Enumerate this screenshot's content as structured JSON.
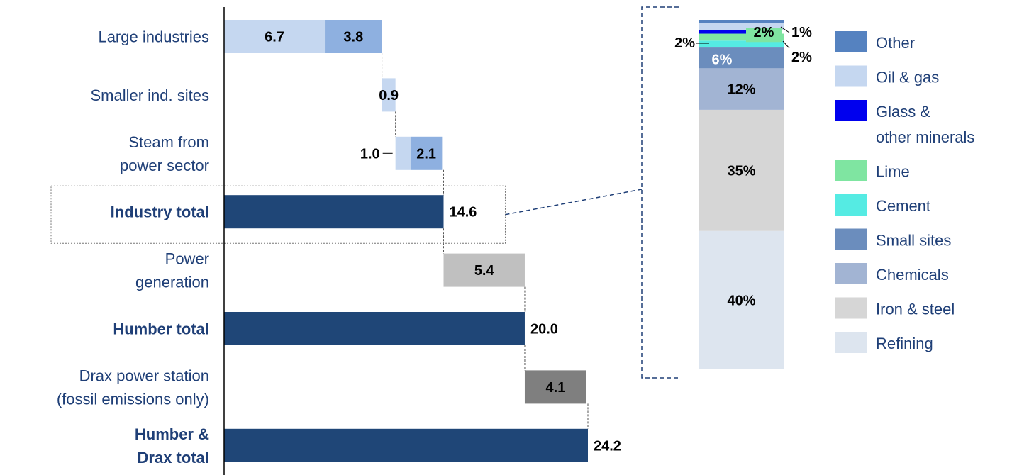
{
  "chart_data": {
    "type": "bar",
    "subtype": "waterfall-with-breakdown",
    "title": "",
    "xlabel": "",
    "ylabel": "",
    "waterfall": {
      "categories": [
        {
          "label_lines": [
            "Large industries"
          ],
          "bold": false
        },
        {
          "label_lines": [
            "Smaller ind. sites"
          ],
          "bold": false
        },
        {
          "label_lines": [
            "Steam from",
            "power sector"
          ],
          "bold": false
        },
        {
          "label_lines": [
            "Industry total"
          ],
          "bold": true
        },
        {
          "label_lines": [
            "Power",
            "generation"
          ],
          "bold": false
        },
        {
          "label_lines": [
            "Humber total"
          ],
          "bold": true
        },
        {
          "label_lines": [
            "Drax power station",
            "(fossil emissions only)"
          ],
          "bold": false
        },
        {
          "label_lines": [
            "Humber &",
            "Drax total"
          ],
          "bold": true
        }
      ],
      "x_range": [
        0,
        24.2
      ],
      "segments": [
        {
          "row": 0,
          "start": 0.0,
          "value": 6.7,
          "label": "6.7",
          "color": "#c5d7f0",
          "label_pos": "inside",
          "label_color": "#000000"
        },
        {
          "row": 0,
          "start": 6.7,
          "value": 3.8,
          "label": "3.8",
          "color": "#8eb0e0",
          "label_pos": "inside",
          "label_color": "#000000"
        },
        {
          "row": 1,
          "start": 10.5,
          "value": 0.9,
          "label": "0.9",
          "color": "#c5d7f0",
          "label_pos": "inside",
          "label_color": "#000000"
        },
        {
          "row": 2,
          "start": 11.4,
          "value": 1.0,
          "label": "1.0",
          "color": "#c5d7f0",
          "label_pos": "left",
          "label_color": "#000000"
        },
        {
          "row": 2,
          "start": 12.4,
          "value": 2.1,
          "label": "2.1",
          "color": "#8eb0e0",
          "label_pos": "inside",
          "label_color": "#000000"
        },
        {
          "row": 3,
          "start": 0.0,
          "value": 14.6,
          "label": "14.6",
          "color": "#1f4677",
          "label_pos": "right",
          "label_color": "#000000"
        },
        {
          "row": 4,
          "start": 14.6,
          "value": 5.4,
          "label": "5.4",
          "color": "#c0c0c0",
          "label_pos": "inside",
          "label_color": "#000000"
        },
        {
          "row": 5,
          "start": 0.0,
          "value": 20.0,
          "label": "20.0",
          "color": "#1f4677",
          "label_pos": "right",
          "label_color": "#000000"
        },
        {
          "row": 6,
          "start": 20.0,
          "value": 4.1,
          "label": "4.1",
          "color": "#7f7f7f",
          "label_pos": "inside",
          "label_color": "#ffffff"
        },
        {
          "row": 7,
          "start": 0.0,
          "value": 24.2,
          "label": "24.2",
          "color": "#1f4677",
          "label_pos": "right",
          "label_color": "#000000"
        }
      ],
      "highlight_row": 3
    },
    "breakdown": {
      "of": "Industry total",
      "stack_bottom_to_top": [
        {
          "name": "Refining",
          "value": 40,
          "label": "40%",
          "color": "#dde5ef",
          "label_pos": "inside"
        },
        {
          "name": "Iron & steel",
          "value": 35,
          "label": "35%",
          "color": "#d6d6d6",
          "label_pos": "inside"
        },
        {
          "name": "Chemicals",
          "value": 12,
          "label": "12%",
          "color": "#a2b4d3",
          "label_pos": "inside"
        },
        {
          "name": "Small sites",
          "value": 6,
          "label": "6%",
          "color": "#6b8dbd",
          "label_pos": "inside-white"
        },
        {
          "name": "Cement",
          "value": 2,
          "label": "2%",
          "color": "#55ebe3",
          "label_pos": "left"
        },
        {
          "name": "Lime",
          "value": 2,
          "label": "2%",
          "color": "#7fe5a1",
          "label_pos": "inside"
        },
        {
          "name": "Glass & other minerals",
          "value": 1,
          "label": "1%",
          "color": "#0000ee",
          "label_pos": "right-top"
        },
        {
          "name": "Oil & gas",
          "value": 2,
          "label": "2%",
          "color": "#c5d7f0",
          "label_pos": "right-lower"
        },
        {
          "name": "Other",
          "value": 1,
          "label": "",
          "color": "#5582c0",
          "label_pos": "none"
        }
      ]
    },
    "legend": {
      "position": "right",
      "entries": [
        {
          "label_lines": [
            "Other"
          ],
          "color": "#5582c0"
        },
        {
          "label_lines": [
            "Oil & gas"
          ],
          "color": "#c5d7f0"
        },
        {
          "label_lines": [
            "Glass &",
            "other minerals"
          ],
          "color": "#0000ee"
        },
        {
          "label_lines": [
            "Lime"
          ],
          "color": "#7fe5a1"
        },
        {
          "label_lines": [
            "Cement"
          ],
          "color": "#55ebe3"
        },
        {
          "label_lines": [
            "Small sites"
          ],
          "color": "#6b8dbd"
        },
        {
          "label_lines": [
            "Chemicals"
          ],
          "color": "#a2b4d3"
        },
        {
          "label_lines": [
            "Iron & steel"
          ],
          "color": "#d6d6d6"
        },
        {
          "label_lines": [
            "Refining"
          ],
          "color": "#dde5ef"
        }
      ]
    }
  }
}
